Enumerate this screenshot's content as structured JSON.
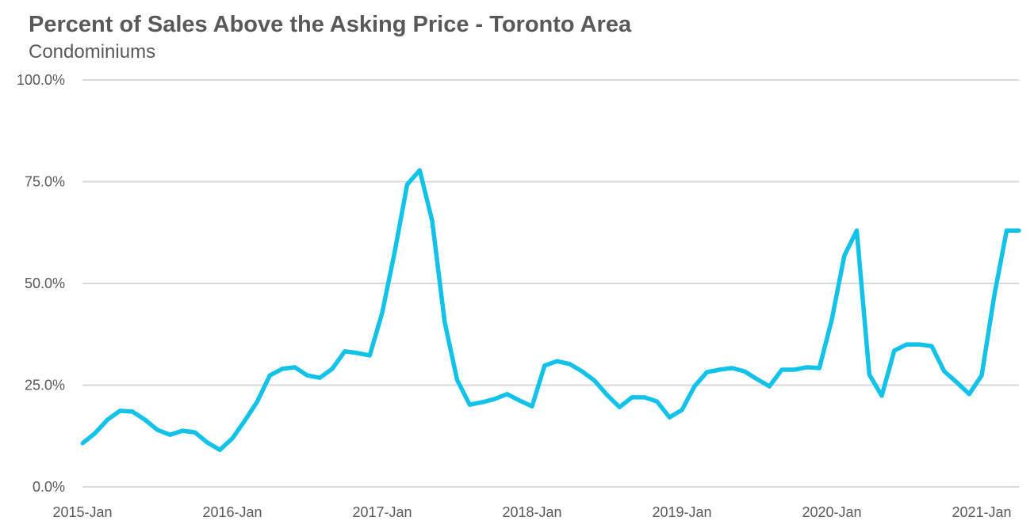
{
  "chart_data": {
    "type": "line",
    "title": "Percent of Sales Above the Asking Price - Toronto Area",
    "subtitle": "Condominiums",
    "xlabel": "",
    "ylabel": "",
    "ylim": [
      0,
      100
    ],
    "yticks": [
      "0.0%",
      "25.0%",
      "50.0%",
      "75.0%",
      "100.0%"
    ],
    "ytick_values": [
      0,
      25,
      50,
      75,
      100
    ],
    "xticks": [
      "2015-Jan",
      "2016-Jan",
      "2017-Jan",
      "2018-Jan",
      "2019-Jan",
      "2020-Jan",
      "2021-Jan"
    ],
    "x_start": "2015-Jan",
    "x_end": "2021-Apr",
    "grid": true,
    "line_color": "#12c2e9",
    "series": [
      {
        "values": [
          10.7,
          13.2,
          16.5,
          18.7,
          18.5,
          16.5,
          14.0,
          12.8,
          13.8,
          13.4,
          10.9,
          9.1,
          11.9,
          16.3,
          21.0,
          27.4,
          29.0,
          29.4,
          27.4,
          26.8,
          29.0,
          33.3,
          32.9,
          32.3,
          42.8,
          57.8,
          74.3,
          77.8,
          65.4,
          40.5,
          26.3,
          20.2,
          20.8,
          21.6,
          22.8,
          21.2,
          19.8,
          29.8,
          30.9,
          30.2,
          28.4,
          26.1,
          22.6,
          19.6,
          22.0,
          22.0,
          21.0,
          17.1,
          18.9,
          24.7,
          28.2,
          28.8,
          29.2,
          28.4,
          26.5,
          24.7,
          28.8,
          28.8,
          29.4,
          29.2,
          41.1,
          56.8,
          63.0,
          27.6,
          22.4,
          33.5,
          35.0,
          35.0,
          34.6,
          28.4,
          25.7,
          22.8,
          27.4,
          46.9,
          63.0,
          63.0
        ]
      }
    ]
  }
}
